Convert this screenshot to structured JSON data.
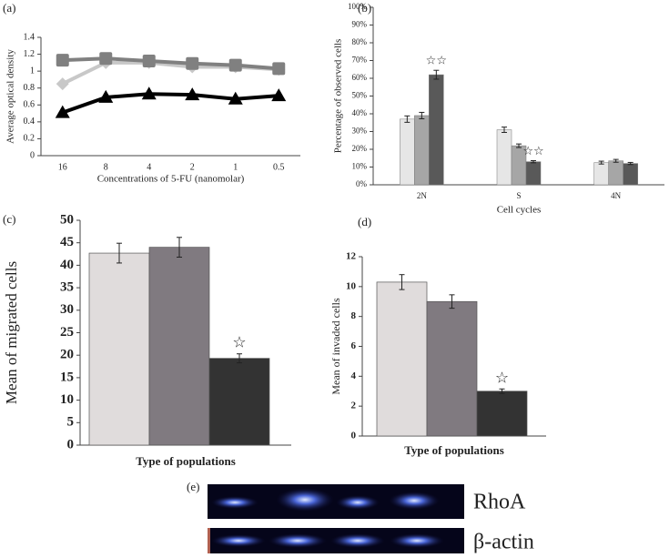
{
  "chart_data": [
    {
      "type": "line",
      "label": "(a)",
      "y_label": "Average optical density",
      "x_label": "Concentrations of 5-FU (nanomolar)",
      "categories": [
        "16",
        "8",
        "4",
        "2",
        "1",
        "0.5"
      ],
      "ylim": [
        0,
        1.4
      ],
      "yticks": [
        0,
        0.2,
        0.4,
        0.6,
        0.8,
        1,
        1.2,
        1.4
      ],
      "series": [
        {
          "color": "#c8c8c8",
          "marker": "diamond",
          "values": [
            0.85,
            1.1,
            1.1,
            1.05,
            1.05,
            1.02
          ]
        },
        {
          "color": "#808080",
          "marker": "square",
          "values": [
            1.13,
            1.15,
            1.12,
            1.09,
            1.07,
            1.03
          ]
        },
        {
          "color": "#000000",
          "marker": "triangle",
          "values": [
            0.51,
            0.69,
            0.73,
            0.72,
            0.67,
            0.71
          ]
        }
      ]
    },
    {
      "type": "bar",
      "label": "(b)",
      "y_label": "Percentage of observed cells",
      "x_label": "Cell cycles",
      "categories": [
        "2N",
        "S",
        "4N"
      ],
      "ylim": [
        0,
        100
      ],
      "yticks": [
        {
          "value": 0,
          "label": "0%"
        },
        {
          "value": 10,
          "label": "10%"
        },
        {
          "value": 20,
          "label": "20%"
        },
        {
          "value": 30,
          "label": "30%"
        },
        {
          "value": 40,
          "label": "40%"
        },
        {
          "value": 50,
          "label": "50%"
        },
        {
          "value": 60,
          "label": "60%"
        },
        {
          "value": 70,
          "label": "70%"
        },
        {
          "value": 80,
          "label": "80%"
        },
        {
          "value": 90,
          "label": "90%"
        },
        {
          "value": 100,
          "label": "100%"
        }
      ],
      "series": [
        {
          "color": "#e6e6e6",
          "values": [
            37,
            31,
            12.5
          ],
          "errors": [
            1.8,
            1.5,
            0.8
          ]
        },
        {
          "color": "#a6a6a6",
          "values": [
            39,
            22,
            13.5
          ],
          "errors": [
            1.8,
            1,
            0.8
          ]
        },
        {
          "color": "#595959",
          "values": [
            62,
            13,
            12
          ],
          "errors": [
            2.5,
            0.6,
            0.6
          ],
          "annotations": [
            "☆☆",
            "☆☆",
            null
          ]
        }
      ]
    },
    {
      "type": "bar",
      "label": "(c)",
      "y_label": "Mean of migrated cells",
      "x_label": "Type of populations",
      "ylim": [
        0,
        50
      ],
      "yticks": [
        0,
        5,
        10,
        15,
        20,
        25,
        30,
        35,
        40,
        45,
        50
      ],
      "values": [
        42.7,
        44,
        19.3
      ],
      "errors": [
        2.2,
        2.2,
        1
      ],
      "colors": [
        "#e0dcdc",
        "#807a80",
        "#333333"
      ],
      "annotations": [
        null,
        null,
        "☆"
      ]
    },
    {
      "type": "bar",
      "label": "(d)",
      "y_label": "Mean of invaded cells",
      "x_label": "Type of populations",
      "ylim": [
        0,
        12
      ],
      "yticks": [
        0,
        2,
        4,
        6,
        8,
        10,
        12
      ],
      "values": [
        10.3,
        9.0,
        3.0
      ],
      "errors": [
        0.5,
        0.45,
        0.15
      ],
      "colors": [
        "#e0dcdc",
        "#807a80",
        "#333333"
      ],
      "annotations": [
        null,
        null,
        "☆"
      ]
    }
  ],
  "blot": {
    "label": "(e)",
    "rows": [
      "RhoA",
      "β-actin"
    ]
  }
}
